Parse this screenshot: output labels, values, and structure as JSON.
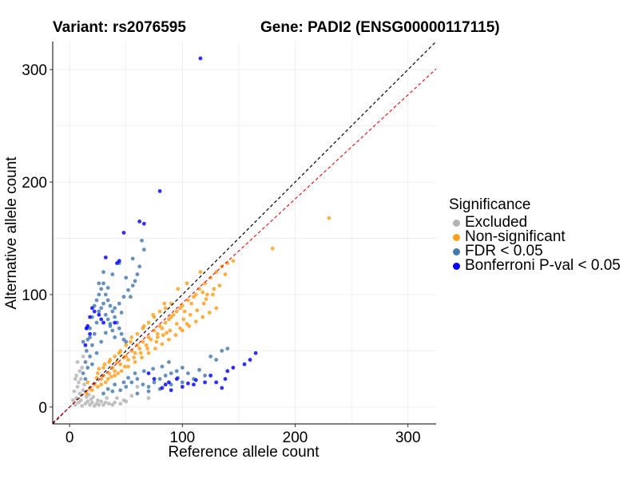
{
  "header": {
    "variant": "Variant: rs2076595",
    "gene": "Gene: PADI2 (ENSG00000117115)"
  },
  "chart_data": {
    "type": "scatter",
    "xlabel": "Reference allele count",
    "ylabel": "Alternative allele count",
    "xlim": [
      -15,
      325
    ],
    "ylim": [
      -15,
      325
    ],
    "xticks": [
      0,
      100,
      200,
      300
    ],
    "yticks": [
      0,
      100,
      200,
      300
    ],
    "grid": true,
    "legend_position": "right",
    "legend_title": "Significance",
    "reference_lines": [
      {
        "name": "identity",
        "slope": 1.0,
        "color": "#000000",
        "dash": "dashed"
      },
      {
        "name": "fit",
        "slope": 0.925,
        "color": "#e41a1c",
        "dash": "dashed"
      }
    ],
    "series": [
      {
        "name": "Excluded",
        "color": "#b3b3b3",
        "points": [
          [
            5,
            2
          ],
          [
            6,
            8
          ],
          [
            8,
            4
          ],
          [
            9,
            12
          ],
          [
            10,
            6
          ],
          [
            11,
            1
          ],
          [
            12,
            15
          ],
          [
            7,
            18
          ],
          [
            14,
            3
          ],
          [
            15,
            9
          ],
          [
            16,
            5
          ],
          [
            18,
            2
          ],
          [
            20,
            4
          ],
          [
            22,
            1
          ],
          [
            24,
            3
          ],
          [
            26,
            2
          ],
          [
            28,
            5
          ],
          [
            30,
            2
          ],
          [
            32,
            4
          ],
          [
            35,
            3
          ],
          [
            38,
            2
          ],
          [
            40,
            4
          ],
          [
            45,
            3
          ],
          [
            8,
            22
          ],
          [
            6,
            28
          ],
          [
            9,
            32
          ],
          [
            10,
            25
          ],
          [
            13,
            20
          ],
          [
            11,
            35
          ],
          [
            7,
            40
          ],
          [
            12,
            45
          ],
          [
            4,
            14
          ],
          [
            3,
            6
          ],
          [
            17,
            11
          ],
          [
            19,
            7
          ],
          [
            21,
            9
          ],
          [
            25,
            6
          ],
          [
            5,
            25
          ],
          [
            60,
            18
          ],
          [
            55,
            10
          ],
          [
            70,
            8
          ],
          [
            48,
            6
          ],
          [
            42,
            8
          ],
          [
            50,
            5
          ],
          [
            33,
            8
          ]
        ]
      },
      {
        "name": "Non-significant",
        "color": "#ff9f1c",
        "points": [
          [
            20,
            15
          ],
          [
            22,
            20
          ],
          [
            25,
            18
          ],
          [
            28,
            25
          ],
          [
            30,
            28
          ],
          [
            32,
            22
          ],
          [
            35,
            30
          ],
          [
            38,
            35
          ],
          [
            40,
            32
          ],
          [
            42,
            40
          ],
          [
            45,
            38
          ],
          [
            48,
            44
          ],
          [
            50,
            45
          ],
          [
            52,
            42
          ],
          [
            55,
            50
          ],
          [
            58,
            48
          ],
          [
            60,
            55
          ],
          [
            62,
            52
          ],
          [
            65,
            58
          ],
          [
            68,
            55
          ],
          [
            70,
            62
          ],
          [
            72,
            60
          ],
          [
            75,
            68
          ],
          [
            78,
            65
          ],
          [
            80,
            72
          ],
          [
            82,
            70
          ],
          [
            85,
            75
          ],
          [
            88,
            78
          ],
          [
            90,
            80
          ],
          [
            92,
            82
          ],
          [
            95,
            85
          ],
          [
            98,
            88
          ],
          [
            100,
            90
          ],
          [
            102,
            85
          ],
          [
            105,
            95
          ],
          [
            108,
            92
          ],
          [
            110,
            98
          ],
          [
            112,
            100
          ],
          [
            115,
            105
          ],
          [
            118,
            102
          ],
          [
            120,
            110
          ],
          [
            125,
            115
          ],
          [
            130,
            120
          ],
          [
            135,
            125
          ],
          [
            140,
            128
          ],
          [
            145,
            130
          ],
          [
            25,
            30
          ],
          [
            30,
            35
          ],
          [
            35,
            40
          ],
          [
            40,
            45
          ],
          [
            45,
            50
          ],
          [
            50,
            55
          ],
          [
            55,
            62
          ],
          [
            60,
            65
          ],
          [
            65,
            70
          ],
          [
            70,
            75
          ],
          [
            75,
            80
          ],
          [
            80,
            85
          ],
          [
            85,
            88
          ],
          [
            90,
            92
          ],
          [
            28,
            20
          ],
          [
            34,
            25
          ],
          [
            40,
            28
          ],
          [
            46,
            32
          ],
          [
            52,
            36
          ],
          [
            58,
            40
          ],
          [
            64,
            44
          ],
          [
            70,
            48
          ],
          [
            76,
            52
          ],
          [
            82,
            56
          ],
          [
            88,
            60
          ],
          [
            94,
            64
          ],
          [
            100,
            68
          ],
          [
            106,
            72
          ],
          [
            112,
            76
          ],
          [
            118,
            80
          ],
          [
            124,
            84
          ],
          [
            130,
            88
          ],
          [
            36,
            42
          ],
          [
            44,
            48
          ],
          [
            54,
            58
          ],
          [
            66,
            72
          ],
          [
            74,
            82
          ],
          [
            84,
            92
          ],
          [
            96,
            105
          ],
          [
            104,
            110
          ],
          [
            116,
            120
          ],
          [
            15,
            12
          ],
          [
            18,
            16
          ],
          [
            16,
            22
          ],
          [
            24,
            26
          ],
          [
            26,
            34
          ],
          [
            31,
            38
          ],
          [
            37,
            27
          ],
          [
            43,
            30
          ],
          [
            49,
            36
          ],
          [
            57,
            44
          ],
          [
            63,
            48
          ],
          [
            69,
            52
          ],
          [
            77,
            58
          ],
          [
            83,
            64
          ],
          [
            89,
            68
          ],
          [
            95,
            74
          ],
          [
            101,
            78
          ],
          [
            107,
            82
          ],
          [
            113,
            86
          ],
          [
            119,
            92
          ],
          [
            121,
            96
          ],
          [
            127,
            100
          ],
          [
            133,
            108
          ],
          [
            128,
            105
          ],
          [
            138,
            118
          ],
          [
            122,
            100
          ],
          [
            104,
            74
          ],
          [
            98,
            70
          ],
          [
            86,
            66
          ],
          [
            78,
            62
          ],
          [
            180,
            141
          ],
          [
            230,
            168
          ]
        ]
      },
      {
        "name": "FDR < 0.05",
        "color": "#4479ad",
        "points": [
          [
            12,
            30
          ],
          [
            14,
            40
          ],
          [
            15,
            50
          ],
          [
            16,
            60
          ],
          [
            18,
            70
          ],
          [
            20,
            80
          ],
          [
            22,
            90
          ],
          [
            24,
            95
          ],
          [
            26,
            100
          ],
          [
            28,
            105
          ],
          [
            30,
            110
          ],
          [
            32,
            100
          ],
          [
            34,
            95
          ],
          [
            36,
            90
          ],
          [
            38,
            85
          ],
          [
            40,
            80
          ],
          [
            42,
            75
          ],
          [
            44,
            70
          ],
          [
            46,
            65
          ],
          [
            48,
            60
          ],
          [
            50,
            58
          ],
          [
            18,
            45
          ],
          [
            20,
            55
          ],
          [
            22,
            65
          ],
          [
            24,
            75
          ],
          [
            26,
            85
          ],
          [
            28,
            88
          ],
          [
            30,
            92
          ],
          [
            32,
            82
          ],
          [
            34,
            78
          ],
          [
            36,
            72
          ],
          [
            38,
            68
          ],
          [
            40,
            62
          ],
          [
            16,
            35
          ],
          [
            14,
            25
          ],
          [
            20,
            38
          ],
          [
            24,
            48
          ],
          [
            28,
            58
          ],
          [
            32,
            66
          ],
          [
            36,
            74
          ],
          [
            40,
            88
          ],
          [
            44,
            92
          ],
          [
            48,
            98
          ],
          [
            52,
            104
          ],
          [
            56,
            108
          ],
          [
            58,
            112
          ],
          [
            60,
            118
          ],
          [
            62,
            125
          ],
          [
            64,
            148
          ],
          [
            66,
            140
          ],
          [
            56,
            132
          ],
          [
            44,
            128
          ],
          [
            50,
            115
          ],
          [
            54,
            98
          ],
          [
            46,
            84
          ],
          [
            30,
            120
          ],
          [
            38,
            118
          ],
          [
            26,
            110
          ],
          [
            34,
            106
          ],
          [
            18,
            62
          ],
          [
            15,
            70
          ],
          [
            12,
            58
          ],
          [
            40,
            20
          ],
          [
            45,
            15
          ],
          [
            50,
            18
          ],
          [
            55,
            22
          ],
          [
            60,
            25
          ],
          [
            65,
            20
          ],
          [
            70,
            18
          ],
          [
            75,
            22
          ],
          [
            80,
            25
          ],
          [
            85,
            28
          ],
          [
            90,
            30
          ],
          [
            95,
            32
          ],
          [
            100,
            35
          ],
          [
            60,
            12
          ],
          [
            70,
            14
          ],
          [
            80,
            16
          ],
          [
            90,
            20
          ],
          [
            100,
            22
          ],
          [
            110,
            25
          ],
          [
            120,
            28
          ],
          [
            58,
            30
          ],
          [
            66,
            32
          ],
          [
            74,
            34
          ],
          [
            82,
            36
          ],
          [
            88,
            40
          ],
          [
            96,
            26
          ],
          [
            105,
            30
          ],
          [
            115,
            33
          ],
          [
            130,
            42
          ],
          [
            135,
            50
          ],
          [
            125,
            45
          ],
          [
            140,
            52
          ],
          [
            52,
            26
          ],
          [
            48,
            22
          ],
          [
            38,
            14
          ],
          [
            34,
            16
          ],
          [
            30,
            12
          ]
        ]
      },
      {
        "name": "Bonferroni P-val < 0.05",
        "color": "#0000ff",
        "points": [
          [
            116,
            310
          ],
          [
            80,
            192
          ],
          [
            62,
            165
          ],
          [
            66,
            163
          ],
          [
            48,
            155
          ],
          [
            32,
            133
          ],
          [
            42,
            128
          ],
          [
            44,
            130
          ],
          [
            20,
            88
          ],
          [
            18,
            80
          ],
          [
            22,
            85
          ],
          [
            16,
            72
          ],
          [
            15,
            70
          ],
          [
            28,
            78
          ],
          [
            26,
            82
          ],
          [
            30,
            75
          ],
          [
            18,
            65
          ],
          [
            40,
            75
          ],
          [
            14,
            55
          ],
          [
            120,
            22
          ],
          [
            110,
            20
          ],
          [
            100,
            18
          ],
          [
            95,
            25
          ],
          [
            90,
            15
          ],
          [
            85,
            20
          ],
          [
            82,
            17
          ],
          [
            88,
            22
          ],
          [
            105,
            21
          ],
          [
            112,
            24
          ],
          [
            125,
            28
          ],
          [
            140,
            32
          ],
          [
            145,
            35
          ],
          [
            160,
            42
          ],
          [
            165,
            48
          ],
          [
            155,
            38
          ],
          [
            135,
            17
          ],
          [
            138,
            25
          ],
          [
            130,
            22
          ],
          [
            75,
            25
          ],
          [
            70,
            30
          ]
        ]
      }
    ]
  }
}
